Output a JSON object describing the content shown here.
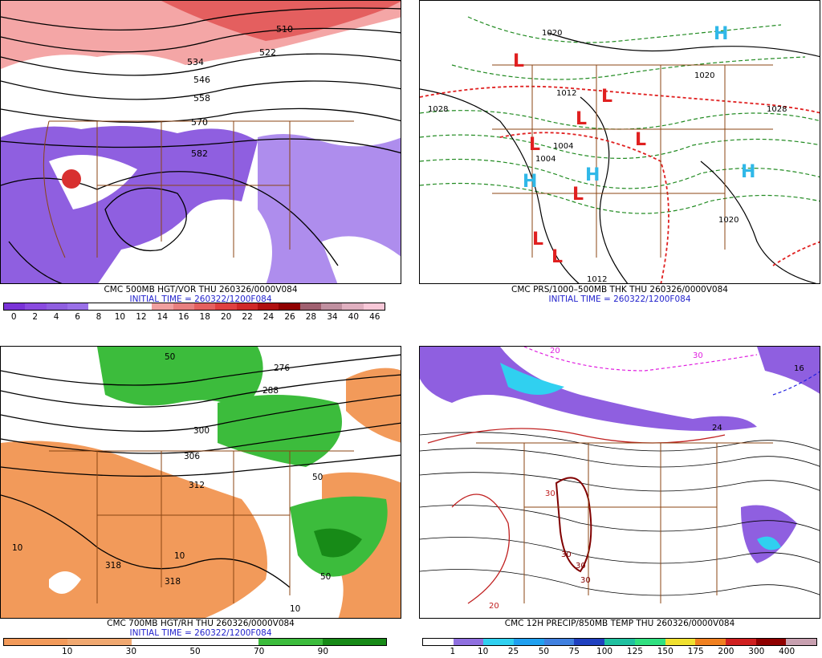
{
  "panels": [
    {
      "id": "tl",
      "title": "CMC 500MB HGT/VOR THU 260326/0000V084",
      "initial": "INITIAL TIME = 260322/1200F084",
      "ticks": [
        "0",
        "2",
        "4",
        "6",
        "8",
        "10",
        "12",
        "14",
        "16",
        "18",
        "20",
        "22",
        "24",
        "26",
        "28",
        "34",
        "40",
        "46"
      ],
      "colors": [
        "#7a33d8",
        "#8a4be0",
        "#8f5fe0",
        "#9a70e8",
        "#ffffff",
        "#ffffff",
        "#ffffff",
        "#f0a0a0",
        "#e88080",
        "#e56060",
        "#e04040",
        "#d02828",
        "#b01010",
        "#900000",
        "#a06070",
        "#c090a0",
        "#e0b0c0",
        "#f8c8d8"
      ],
      "labels": [
        "510",
        "522",
        "534",
        "546",
        "558",
        "570",
        "582"
      ]
    },
    {
      "id": "tr",
      "title": "CMC PRS/1000–500MB THK THU 260326/0000V084",
      "initial": "INITIAL TIME = 260322/1200F084",
      "highs": [
        "H",
        "H",
        "H",
        "H"
      ],
      "lows": [
        "L",
        "L",
        "L",
        "L",
        "L",
        "L",
        "L",
        "L"
      ],
      "labels": [
        "1020",
        "1028",
        "1028",
        "1012",
        "1004",
        "1004",
        "1020",
        "1012",
        "1020"
      ]
    },
    {
      "id": "bl",
      "title": "CMC 700MB HGT/RH THU 260326/0000V084",
      "initial": "INITIAL TIME = 260322/1200F084",
      "ticks": [
        "10",
        "30",
        "50",
        "70",
        "90"
      ],
      "colors": [
        "#f29a5a",
        "#f0a870",
        "#ffffff",
        "#ffffff",
        "#3cbc3c",
        "#178a17"
      ],
      "labels": [
        "276",
        "288",
        "300",
        "306",
        "312",
        "318",
        "318",
        "10",
        "10",
        "10",
        "50",
        "50",
        "50"
      ]
    },
    {
      "id": "br",
      "title": "CMC 12H PRECIP/850MB TEMP THU 260326/0000V084",
      "ticks": [
        "1",
        "10",
        "25",
        "50",
        "75",
        "100",
        "125",
        "150",
        "175",
        "200",
        "300",
        "400"
      ],
      "colors": [
        "#ffffff",
        "#9070e0",
        "#30d0f0",
        "#20a0f0",
        "#4080e0",
        "#2040c0",
        "#20c0a0",
        "#30e080",
        "#f0e030",
        "#f08020",
        "#d02020",
        "#900000",
        "#c8a0b0"
      ],
      "labels": [
        "20",
        "30",
        "30",
        "30",
        "30",
        "30",
        "20",
        "16",
        "24"
      ]
    }
  ]
}
